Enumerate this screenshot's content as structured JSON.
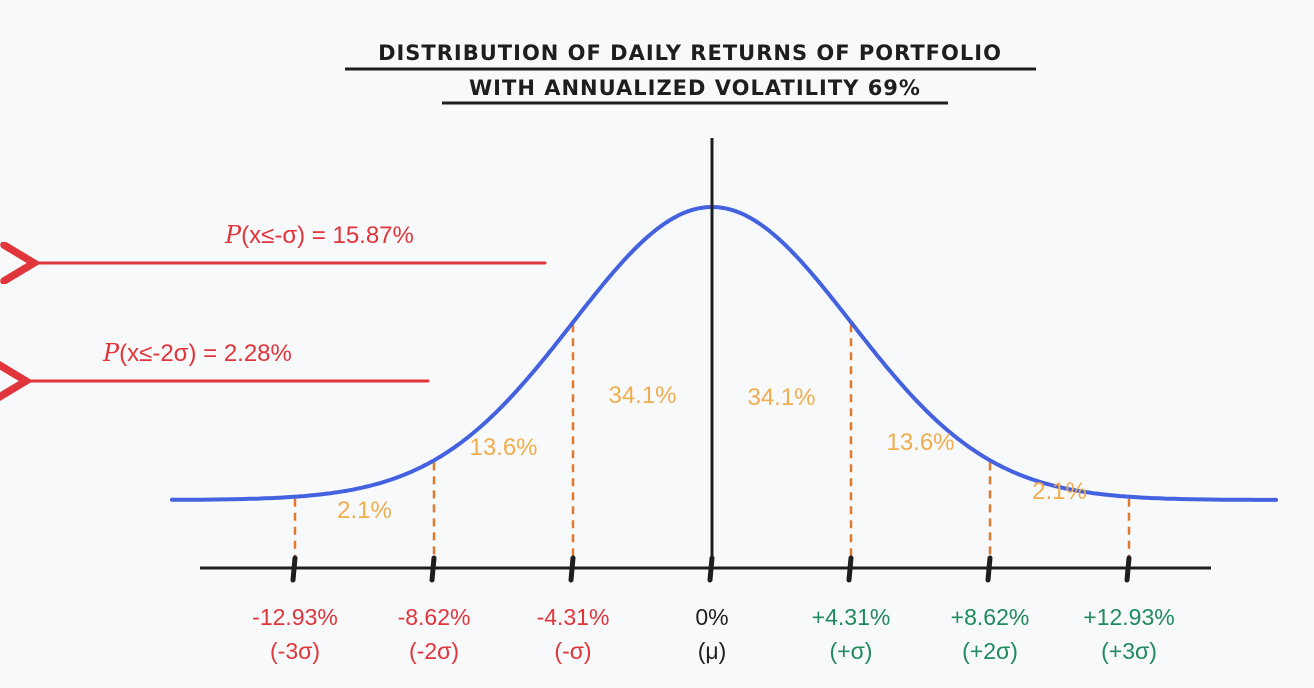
{
  "title": {
    "line1": "DISTRIBUTION OF DAILY RETURNS OF PORTFOLIO",
    "line2": "WITH ANNUALIZED VOLATILITY 69%"
  },
  "colors": {
    "curve": "#4461e0",
    "axis": "#1e1e1e",
    "dashed": "#e07a2c",
    "band_labels": "#f0ad4e",
    "negative": "#e0353a",
    "positive": "#1f8a5b",
    "background": "#f8f9fb"
  },
  "probabilities": [
    {
      "prefix": "P",
      "expr": "(x≤-σ) = 15.87%"
    },
    {
      "prefix": "P",
      "expr": "(x≤-2σ) = 2.28%"
    }
  ],
  "chart_data": {
    "type": "area",
    "distribution": "normal",
    "mean_pct": 0,
    "sigma_pct": 4.31,
    "ticks": [
      {
        "sigma": -3,
        "value_pct": -12.93,
        "label": "-12.93%",
        "sublabel": "(-3σ)",
        "tone": "neg"
      },
      {
        "sigma": -2,
        "value_pct": -8.62,
        "label": "-8.62%",
        "sublabel": "(-2σ)",
        "tone": "neg"
      },
      {
        "sigma": -1,
        "value_pct": -4.31,
        "label": "-4.31%",
        "sublabel": "(-σ)",
        "tone": "neg"
      },
      {
        "sigma": 0,
        "value_pct": 0,
        "label": "0%",
        "sublabel": "(μ)",
        "tone": "mid"
      },
      {
        "sigma": 1,
        "value_pct": 4.31,
        "label": "+4.31%",
        "sublabel": "(+σ)",
        "tone": "pos"
      },
      {
        "sigma": 2,
        "value_pct": 8.62,
        "label": "+8.62%",
        "sublabel": "(+2σ)",
        "tone": "pos"
      },
      {
        "sigma": 3,
        "value_pct": 12.93,
        "label": "+12.93%",
        "sublabel": "(+3σ)",
        "tone": "pos"
      }
    ],
    "bands": [
      {
        "from_sigma": -3,
        "to_sigma": -2,
        "label": "2.1%"
      },
      {
        "from_sigma": -2,
        "to_sigma": -1,
        "label": "13.6%"
      },
      {
        "from_sigma": -1,
        "to_sigma": 0,
        "label": "34.1%"
      },
      {
        "from_sigma": 0,
        "to_sigma": 1,
        "label": "34.1%"
      },
      {
        "from_sigma": 1,
        "to_sigma": 2,
        "label": "13.6%"
      },
      {
        "from_sigma": 2,
        "to_sigma": 3,
        "label": "2.1%"
      }
    ],
    "cumulative_markers": [
      {
        "sigma": -1,
        "label_index": 0
      },
      {
        "sigma": -2,
        "label_index": 1
      }
    ]
  }
}
